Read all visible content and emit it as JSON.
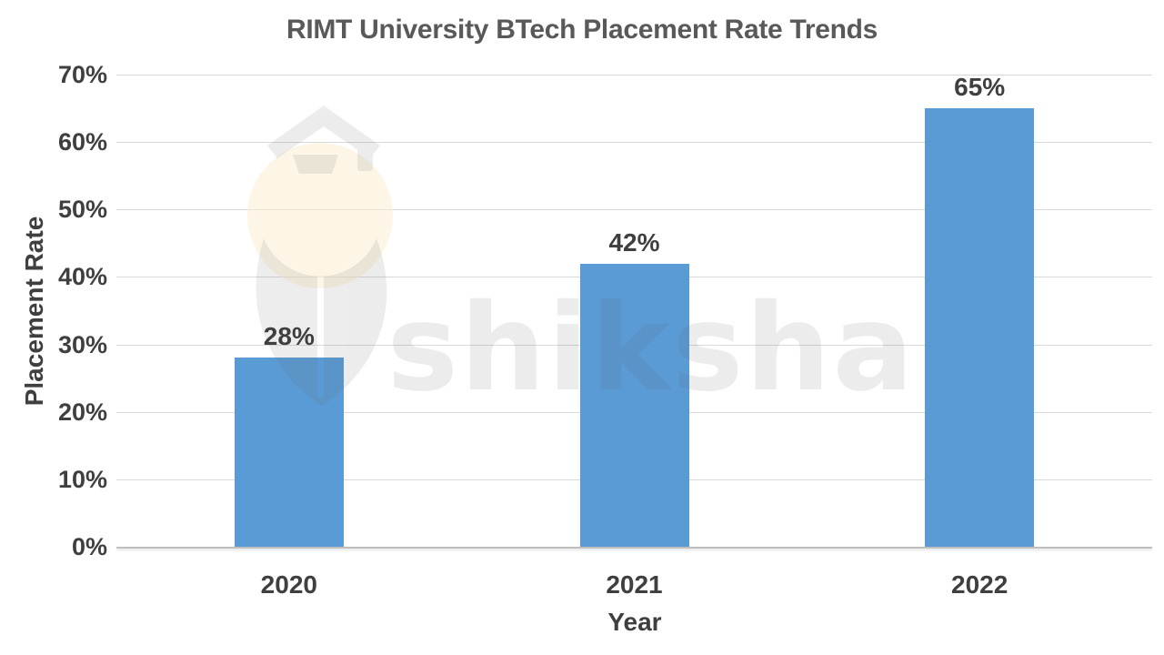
{
  "chart_data": {
    "type": "bar",
    "title": "RIMT University BTech Placement Rate Trends",
    "xlabel": "Year",
    "ylabel": "Placement Rate",
    "categories": [
      "2020",
      "2021",
      "2022"
    ],
    "values": [
      28,
      42,
      65
    ],
    "value_labels": [
      "28%",
      "42%",
      "65%"
    ],
    "ylim": [
      0,
      70
    ],
    "ytick_values": [
      0,
      10,
      20,
      30,
      40,
      50,
      60,
      70
    ],
    "yticks": [
      "0%",
      "10%",
      "20%",
      "30%",
      "40%",
      "50%",
      "60%",
      "70%"
    ],
    "grid": true,
    "legend": false,
    "bar_color": "#5B9BD5"
  },
  "colors": {
    "title_text": "#595959",
    "label_text": "#3F3F3F",
    "gridline": "#D9D9D9",
    "axis_line": "#BFBFBF",
    "watermark_gray": "#58595B",
    "watermark_cream": "#FBEFD3"
  },
  "watermark": {
    "text": "shiksha"
  }
}
